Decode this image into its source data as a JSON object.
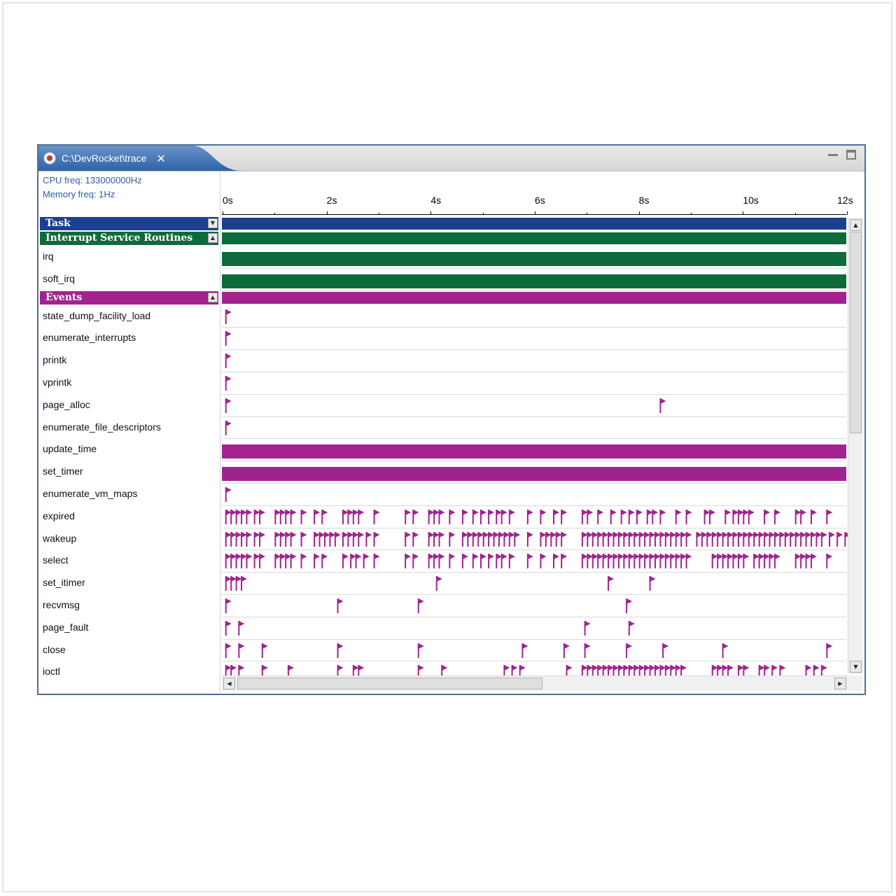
{
  "window": {
    "tab_title": "C:\\DevRocket\\trace",
    "close_glyph": "✕",
    "icon": "trace-file-icon"
  },
  "info": {
    "cpu_freq": "CPU freq: 133000000Hz",
    "memory_freq": "Memory freq: 1Hz"
  },
  "timeline": {
    "ticks": [
      "0s",
      "2s",
      "4s",
      "6s",
      "8s",
      "10s",
      "12s"
    ],
    "max_seconds": 12
  },
  "colors": {
    "task": "#1d3f8f",
    "isr": "#0e6a3a",
    "events": "#a2238f",
    "flag": "#a2238f"
  },
  "categories": [
    {
      "name": "Task",
      "color": "#1d3f8f",
      "toggle": "▼",
      "rows": []
    },
    {
      "name": "Interrupt Service Routines",
      "color": "#0e6a3a",
      "toggle": "▲",
      "rows": [
        {
          "label": "irq",
          "bar": true
        },
        {
          "label": "soft_irq",
          "bar": true
        }
      ]
    },
    {
      "name": "Events",
      "color": "#a2238f",
      "toggle": "▲",
      "rows": [
        {
          "label": "state_dump_facility_load",
          "flags": [
            0.05
          ]
        },
        {
          "label": "enumerate_interrupts",
          "flags": [
            0.05
          ]
        },
        {
          "label": "printk",
          "flags": [
            0.05
          ]
        },
        {
          "label": "vprintk",
          "flags": [
            0.05
          ]
        },
        {
          "label": "page_alloc",
          "flags": [
            0.05,
            8.4
          ]
        },
        {
          "label": "enumerate_file_descriptors",
          "flags": [
            0.05
          ]
        },
        {
          "label": "update_time",
          "bar": true
        },
        {
          "label": "set_timer",
          "bar": true
        },
        {
          "label": "enumerate_vm_maps",
          "flags": [
            0.05
          ]
        },
        {
          "label": "expired",
          "flags": [
            0.05,
            0.15,
            0.25,
            0.35,
            0.45,
            0.6,
            0.7,
            1.0,
            1.1,
            1.2,
            1.3,
            1.5,
            1.75,
            1.9,
            2.3,
            2.4,
            2.5,
            2.6,
            2.9,
            3.5,
            3.65,
            3.95,
            4.05,
            4.15,
            4.35,
            4.6,
            4.8,
            4.95,
            5.1,
            5.25,
            5.35,
            5.5,
            5.85,
            6.1,
            6.35,
            6.5,
            6.9,
            7.0,
            7.2,
            7.45,
            7.65,
            7.8,
            7.95,
            8.15,
            8.25,
            8.4,
            8.7,
            8.9,
            9.25,
            9.35,
            9.65,
            9.8,
            9.9,
            10.0,
            10.1,
            10.4,
            10.6,
            11.0,
            11.1,
            11.3,
            11.6
          ]
        },
        {
          "label": "wakeup",
          "flags": [
            0.05,
            0.15,
            0.25,
            0.35,
            0.45,
            0.6,
            0.7,
            1.0,
            1.1,
            1.2,
            1.3,
            1.5,
            1.75,
            1.85,
            1.95,
            2.05,
            2.15,
            2.3,
            2.4,
            2.5,
            2.6,
            2.75,
            2.9,
            3.5,
            3.65,
            3.95,
            4.05,
            4.15,
            4.35,
            4.6,
            4.7,
            4.8,
            4.9,
            5.0,
            5.1,
            5.2,
            5.3,
            5.4,
            5.5,
            5.6,
            5.85,
            6.1,
            6.2,
            6.3,
            6.4,
            6.5,
            6.9,
            7.0,
            7.1,
            7.2,
            7.3,
            7.4,
            7.5,
            7.6,
            7.7,
            7.8,
            7.9,
            8.0,
            8.1,
            8.2,
            8.3,
            8.4,
            8.5,
            8.6,
            8.7,
            8.8,
            8.9,
            9.1,
            9.2,
            9.3,
            9.4,
            9.5,
            9.6,
            9.7,
            9.8,
            9.9,
            10.0,
            10.1,
            10.2,
            10.3,
            10.4,
            10.5,
            10.6,
            10.7,
            10.8,
            10.9,
            11.0,
            11.1,
            11.2,
            11.3,
            11.4,
            11.5,
            11.65,
            11.8,
            11.95,
            12.05
          ]
        },
        {
          "label": "select",
          "flags": [
            0.05,
            0.15,
            0.25,
            0.35,
            0.45,
            0.6,
            0.7,
            1.0,
            1.1,
            1.2,
            1.3,
            1.5,
            1.75,
            1.9,
            2.3,
            2.45,
            2.55,
            2.7,
            2.9,
            3.5,
            3.65,
            3.95,
            4.05,
            4.15,
            4.35,
            4.6,
            4.8,
            4.95,
            5.1,
            5.25,
            5.35,
            5.5,
            5.85,
            6.1,
            6.35,
            6.5,
            6.9,
            7.0,
            7.1,
            7.2,
            7.3,
            7.4,
            7.5,
            7.6,
            7.7,
            7.8,
            7.9,
            8.0,
            8.1,
            8.2,
            8.3,
            8.4,
            8.5,
            8.6,
            8.7,
            8.8,
            8.9,
            9.4,
            9.5,
            9.6,
            9.7,
            9.8,
            9.9,
            10.0,
            10.2,
            10.3,
            10.4,
            10.5,
            10.6,
            11.0,
            11.1,
            11.2,
            11.3,
            11.6
          ]
        },
        {
          "label": "set_itimer",
          "flags": [
            0.05,
            0.15,
            0.25,
            0.35,
            4.1,
            7.4,
            8.2
          ]
        },
        {
          "label": "recvmsg",
          "flags": [
            0.05,
            2.2,
            3.75,
            7.75
          ]
        },
        {
          "label": "page_fault",
          "flags": [
            0.05,
            0.3,
            6.95,
            7.8
          ]
        },
        {
          "label": "close",
          "flags": [
            0.05,
            0.3,
            0.75,
            2.2,
            3.75,
            5.75,
            6.55,
            6.95,
            7.75,
            8.45,
            9.6,
            11.6
          ]
        },
        {
          "label": "ioctl",
          "flags": [
            0.05,
            0.15,
            0.3,
            0.75,
            1.25,
            2.2,
            2.5,
            2.6,
            3.75,
            4.2,
            5.4,
            5.55,
            5.7,
            6.6,
            6.9,
            7.0,
            7.1,
            7.2,
            7.3,
            7.4,
            7.5,
            7.6,
            7.7,
            7.8,
            7.9,
            8.0,
            8.1,
            8.2,
            8.3,
            8.4,
            8.5,
            8.6,
            8.7,
            8.8,
            9.4,
            9.5,
            9.6,
            9.7,
            9.9,
            10.0,
            10.3,
            10.4,
            10.55,
            10.7,
            11.2,
            11.35,
            11.5
          ]
        }
      ]
    }
  ]
}
